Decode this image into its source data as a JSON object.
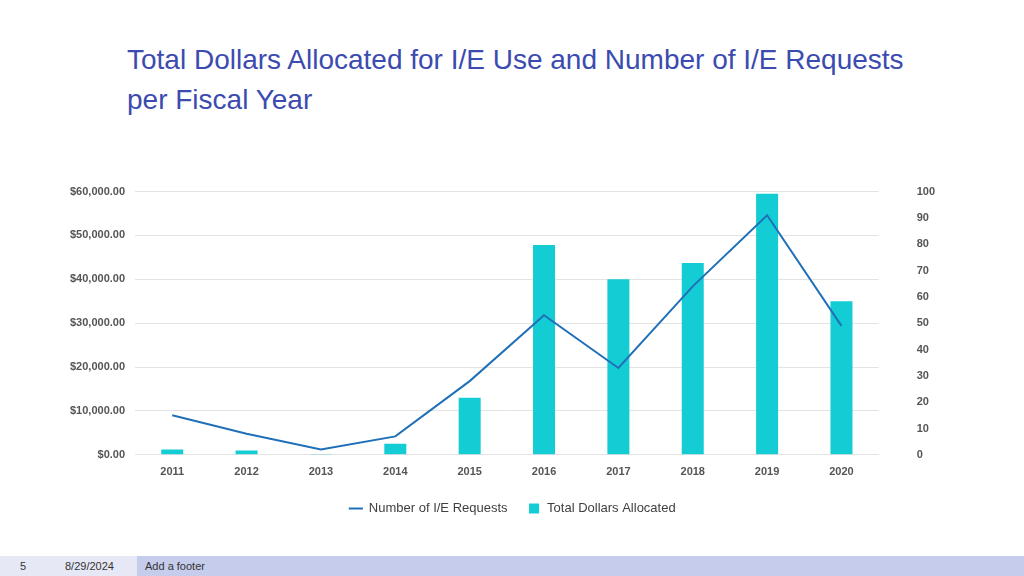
{
  "chart_data": {
    "type": "bar",
    "title": "Total Dollars Allocated for I/E Use and Number of I/E Requests per Fiscal Year",
    "categories": [
      "2011",
      "2012",
      "2013",
      "2014",
      "2015",
      "2016",
      "2017",
      "2018",
      "2019",
      "2020"
    ],
    "series": [
      {
        "name": "Total Dollars Allocated",
        "type": "bar",
        "color": "#14cdd4",
        "axis": "y",
        "values": [
          1200,
          1000,
          200,
          2500,
          13000,
          47800,
          40000,
          43700,
          59500,
          35000
        ]
      },
      {
        "name": "Number of I/E Requests",
        "type": "line",
        "color": "#1f70b8",
        "axis": "y2",
        "marker": "none",
        "line_style": "solid",
        "values": [
          15,
          8,
          2,
          7,
          28,
          53,
          33,
          64,
          91,
          49
        ]
      }
    ],
    "ylim": [
      0,
      60000
    ],
    "yticks": [
      {
        "value": 0,
        "label": "$0.00"
      },
      {
        "value": 10000,
        "label": "$10,000.00"
      },
      {
        "value": 20000,
        "label": "$20,000.00"
      },
      {
        "value": 30000,
        "label": "$30,000.00"
      },
      {
        "value": 40000,
        "label": "$40,000.00"
      },
      {
        "value": 50000,
        "label": "$50,000.00"
      },
      {
        "value": 60000,
        "label": "$60,000.00"
      }
    ],
    "y2lim": [
      0,
      100
    ],
    "y2ticks": [
      0,
      10,
      20,
      30,
      40,
      50,
      60,
      70,
      80,
      90,
      100
    ],
    "grid": true,
    "legend": "bottom"
  },
  "footer": {
    "page_number": 5,
    "date": "8/29/2024",
    "text": "Add a footer"
  }
}
